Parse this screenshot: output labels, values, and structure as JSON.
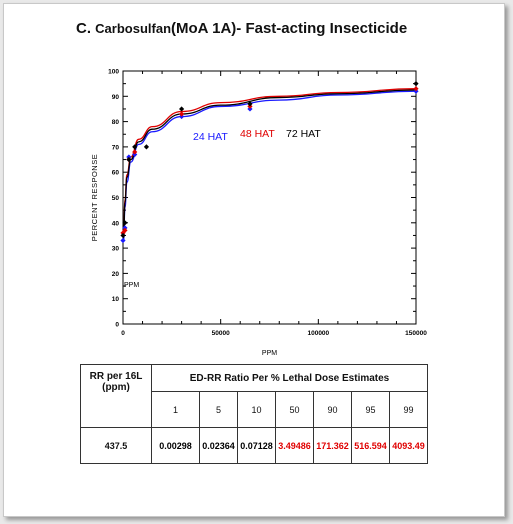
{
  "page": {
    "title_prefix": "C.",
    "title_compound": "Carbosulfan",
    "title_rest": "(MoA 1A)- Fast-acting Insecticide"
  },
  "chart_data": {
    "type": "scatter",
    "xlabel": "PPM",
    "ylabel": "PERCENT RESPONSE",
    "xlim": [
      0,
      150000
    ],
    "ylim": [
      0,
      100
    ],
    "xticks": [
      "0",
      "50000",
      "100000",
      "150000"
    ],
    "yticks": [
      "0",
      "10",
      "20",
      "30",
      "40",
      "50",
      "60",
      "70",
      "80",
      "90",
      "100"
    ],
    "annotation": "PPM",
    "grid": false,
    "series": [
      {
        "name": "24 HAT",
        "color": "#1a1aff",
        "points": [
          [
            0,
            33
          ],
          [
            1000,
            38
          ],
          [
            3000,
            66
          ],
          [
            6000,
            67
          ],
          [
            30000,
            82
          ],
          [
            65000,
            85
          ],
          [
            150000,
            92
          ]
        ]
      },
      {
        "name": "48 HAT",
        "color": "#e00000",
        "points": [
          [
            0,
            36
          ],
          [
            1000,
            37
          ],
          [
            3000,
            65
          ],
          [
            6000,
            68
          ],
          [
            30000,
            83
          ],
          [
            65000,
            86
          ],
          [
            150000,
            93
          ]
        ]
      },
      {
        "name": "72 HAT",
        "color": "#000000",
        "points": [
          [
            0,
            35
          ],
          [
            1000,
            40
          ],
          [
            3000,
            65
          ],
          [
            6000,
            70
          ],
          [
            12000,
            70
          ],
          [
            30000,
            85
          ],
          [
            65000,
            87
          ],
          [
            150000,
            95
          ]
        ]
      }
    ],
    "fit_curves": [
      {
        "series": "24 HAT",
        "color": "#1a1aff",
        "points": [
          [
            300,
            33
          ],
          [
            1000,
            46
          ],
          [
            2000,
            56
          ],
          [
            4000,
            64
          ],
          [
            8000,
            71
          ],
          [
            15000,
            76
          ],
          [
            30000,
            82
          ],
          [
            50000,
            86
          ],
          [
            80000,
            88.5
          ],
          [
            110000,
            90.5
          ],
          [
            150000,
            92
          ]
        ]
      },
      {
        "series": "48 HAT",
        "color": "#e00000",
        "points": [
          [
            300,
            35
          ],
          [
            1000,
            49
          ],
          [
            2000,
            59
          ],
          [
            4000,
            66
          ],
          [
            8000,
            73
          ],
          [
            15000,
            78
          ],
          [
            30000,
            84
          ],
          [
            50000,
            87.5
          ],
          [
            80000,
            90
          ],
          [
            110000,
            91.5
          ],
          [
            150000,
            93
          ]
        ]
      },
      {
        "series": "72 HAT",
        "color": "#000000",
        "points": [
          [
            300,
            34
          ],
          [
            1000,
            48
          ],
          [
            2000,
            58
          ],
          [
            4000,
            65
          ],
          [
            8000,
            72
          ],
          [
            15000,
            77
          ],
          [
            30000,
            83
          ],
          [
            50000,
            86.5
          ],
          [
            80000,
            89.5
          ],
          [
            110000,
            91
          ],
          [
            150000,
            92.5
          ]
        ]
      }
    ]
  },
  "table": {
    "rr_header": "RR per 16L (ppm)",
    "group_header": "ED-RR  Ratio Per % Lethal Dose Estimates",
    "columns": [
      "1",
      "5",
      "10",
      "50",
      "90",
      "95",
      "99"
    ],
    "rr_value": "437.5",
    "values": [
      "0.00298",
      "0.02364",
      "0.07128",
      "3.49486",
      "171.362",
      "516.594",
      "4093.49"
    ],
    "value_colors": [
      "#000000",
      "#000000",
      "#000000",
      "#e00000",
      "#e00000",
      "#e00000",
      "#e00000"
    ]
  }
}
